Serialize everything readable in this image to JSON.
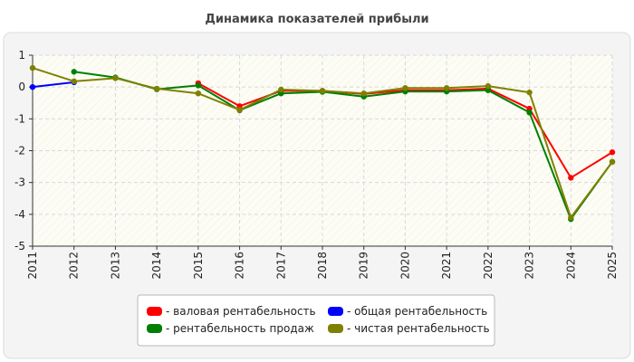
{
  "chart_data": {
    "type": "line",
    "title": "Динамика показателей прибыли",
    "x": [
      "2011",
      "2012",
      "2013",
      "2014",
      "2015",
      "2016",
      "2017",
      "2018",
      "2019",
      "2020",
      "2021",
      "2022",
      "2023",
      "2024",
      "2025"
    ],
    "ylim": [
      -5,
      1
    ],
    "yticks": [
      1,
      0,
      -1,
      -2,
      -3,
      -4,
      -5
    ],
    "grid": true,
    "legend_position": "bottom",
    "series": [
      {
        "name": "- валовая рентабельность",
        "color": "#ff0000",
        "values": [
          null,
          null,
          null,
          null,
          0.12,
          -0.6,
          -0.12,
          -0.12,
          -0.22,
          -0.1,
          -0.1,
          -0.05,
          -0.68,
          -2.85,
          -2.05
        ]
      },
      {
        "name": "- общая рентабельность",
        "color": "#0000ff",
        "values": [
          0.0,
          0.15,
          null,
          null,
          null,
          null,
          null,
          null,
          null,
          null,
          null,
          null,
          null,
          null,
          null
        ]
      },
      {
        "name": "- рентабельность продаж",
        "color": "#008000",
        "values": [
          null,
          0.48,
          0.3,
          -0.07,
          0.05,
          -0.73,
          -0.2,
          -0.15,
          -0.3,
          -0.14,
          -0.14,
          -0.1,
          -0.8,
          -4.15,
          -2.35
        ]
      },
      {
        "name": "- чистая рентабельность",
        "color": "#808000",
        "values": [
          0.6,
          0.18,
          0.28,
          -0.05,
          -0.2,
          -0.72,
          -0.08,
          -0.12,
          -0.2,
          -0.03,
          -0.03,
          0.03,
          -0.17,
          -4.1,
          -2.35
        ]
      }
    ]
  }
}
